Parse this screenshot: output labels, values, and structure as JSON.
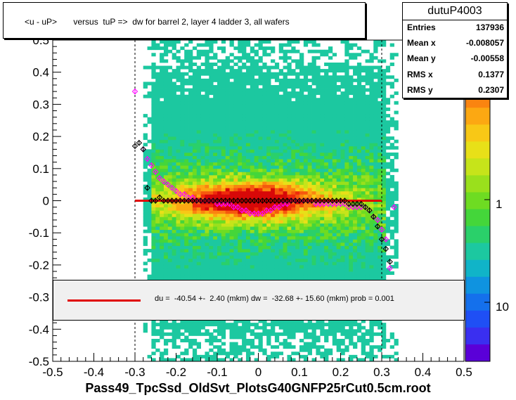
{
  "header": {
    "title": "<u - uP>       versus  tuP =>  dw for barrel 2, layer 4 ladder 3, all wafers"
  },
  "stats": {
    "name": "dutuP4003",
    "rows": [
      {
        "label": "Entries",
        "value": "137936"
      },
      {
        "label": "Mean x",
        "value": "-0.008057"
      },
      {
        "label": "Mean y",
        "value": "-0.00558"
      },
      {
        "label": "RMS x",
        "value": "0.1377"
      },
      {
        "label": "RMS y",
        "value": "0.2307"
      }
    ]
  },
  "fit": {
    "text": "du =  -40.54 +-  2.40 (mkm) dw =  -32.68 +- 15.60 (mkm) prob = 0.001",
    "line_color": "#e00000"
  },
  "colors": {
    "fit_line": "#e00000",
    "profile_black": "#000000",
    "profile_magenta": "#ff00ff"
  },
  "chart_data": {
    "type": "heatmap",
    "title": "<u - uP>       versus  tuP =>  dw for barrel 2, layer 4 ladder 3, all wafers",
    "xlabel": "Pass49_TpcSsd_OldSvt_PlotsG40GNFP25rCut0.5cm.root",
    "ylabel": "",
    "xlim": [
      -0.5,
      0.5
    ],
    "ylim": [
      -0.5,
      0.5
    ],
    "x_ticks": [
      "-0.5",
      "-0.4",
      "-0.3",
      "-0.2",
      "-0.1",
      "0",
      "0.1",
      "0.2",
      "0.3",
      "0.4",
      "0.5"
    ],
    "y_ticks": [
      "-0.5",
      "-0.4",
      "-0.3",
      "-0.2",
      "-0.1",
      "0",
      "0.1",
      "0.2",
      "0.3",
      "0.4",
      "0.5"
    ],
    "z_scale": "log",
    "z_ticks": [
      "1",
      "10"
    ],
    "vertical_guides": [
      -0.3,
      0.3
    ],
    "fit_line": {
      "x": [
        -0.3,
        0.3
      ],
      "y": [
        0,
        0
      ]
    },
    "profile_black": {
      "x": [
        -0.3,
        -0.29,
        -0.28,
        -0.27,
        -0.26,
        -0.25,
        -0.24,
        -0.23,
        -0.22,
        -0.21,
        -0.2,
        -0.19,
        -0.18,
        -0.17,
        -0.16,
        -0.15,
        -0.14,
        -0.13,
        -0.12,
        -0.11,
        -0.1,
        -0.09,
        -0.08,
        -0.07,
        -0.06,
        -0.05,
        -0.04,
        -0.03,
        -0.02,
        -0.01,
        0.0,
        0.01,
        0.02,
        0.03,
        0.04,
        0.05,
        0.06,
        0.07,
        0.08,
        0.09,
        0.1,
        0.11,
        0.12,
        0.13,
        0.14,
        0.15,
        0.16,
        0.17,
        0.18,
        0.19,
        0.2,
        0.21,
        0.22,
        0.23,
        0.24,
        0.25,
        0.26,
        0.27,
        0.28,
        0.29,
        0.3,
        0.31,
        0.32,
        0.33
      ],
      "y": [
        0.17,
        0.18,
        0.16,
        0.04,
        0.0,
        0.0,
        0.01,
        0.0,
        0.0,
        0.0,
        0.0,
        0.0,
        0.0,
        0.0,
        0.0,
        0.0,
        0.0,
        0.0,
        0.0,
        0.0,
        0.0,
        0.0,
        0.0,
        0.0,
        0.0,
        0.0,
        0.0,
        0.0,
        0.0,
        0.0,
        0.0,
        0.0,
        0.0,
        0.0,
        0.0,
        0.0,
        0.0,
        0.0,
        0.0,
        0.0,
        0.0,
        0.0,
        0.0,
        0.0,
        0.0,
        0.0,
        0.0,
        0.0,
        0.0,
        0.0,
        0.0,
        0.0,
        -0.01,
        -0.01,
        -0.01,
        -0.01,
        -0.02,
        -0.03,
        -0.05,
        -0.08,
        -0.12,
        -0.15,
        -0.19,
        null
      ]
    },
    "profile_magenta": {
      "x": [
        -0.3,
        -0.28,
        -0.27,
        -0.26,
        -0.25,
        -0.24,
        -0.23,
        -0.22,
        -0.21,
        -0.2,
        -0.19,
        -0.18,
        -0.17,
        -0.16,
        -0.15,
        -0.14,
        -0.13,
        -0.12,
        -0.11,
        -0.1,
        -0.09,
        -0.08,
        -0.07,
        -0.06,
        -0.05,
        -0.04,
        -0.03,
        -0.02,
        -0.01,
        0.0,
        0.01,
        0.02,
        0.03,
        0.04,
        0.05,
        0.06,
        0.07,
        0.08,
        0.09,
        0.1,
        0.11,
        0.12,
        0.13,
        0.14,
        0.15,
        0.16,
        0.17,
        0.18,
        0.19,
        0.2,
        0.21,
        0.22,
        0.23,
        0.24,
        0.25,
        0.26,
        0.27,
        0.28,
        0.29,
        0.3,
        0.31,
        0.32,
        0.33
      ],
      "y": [
        0.34,
        0.16,
        0.13,
        0.11,
        0.09,
        0.07,
        0.06,
        0.05,
        0.04,
        0.03,
        0.02,
        0.02,
        0.01,
        0.01,
        0.0,
        0.0,
        0.0,
        0.0,
        0.0,
        -0.01,
        -0.01,
        -0.01,
        -0.01,
        -0.02,
        -0.02,
        -0.03,
        -0.03,
        -0.04,
        -0.04,
        -0.04,
        -0.04,
        -0.03,
        -0.03,
        -0.02,
        -0.02,
        -0.01,
        -0.01,
        0.0,
        0.0,
        0.0,
        0.0,
        0.0,
        0.0,
        -0.01,
        -0.01,
        -0.01,
        -0.01,
        -0.01,
        -0.01,
        -0.01,
        -0.01,
        -0.02,
        -0.02,
        -0.02,
        -0.02,
        -0.02,
        -0.03,
        -0.05,
        -0.06,
        -0.09,
        -0.12,
        -0.21,
        -0.02
      ]
    }
  }
}
